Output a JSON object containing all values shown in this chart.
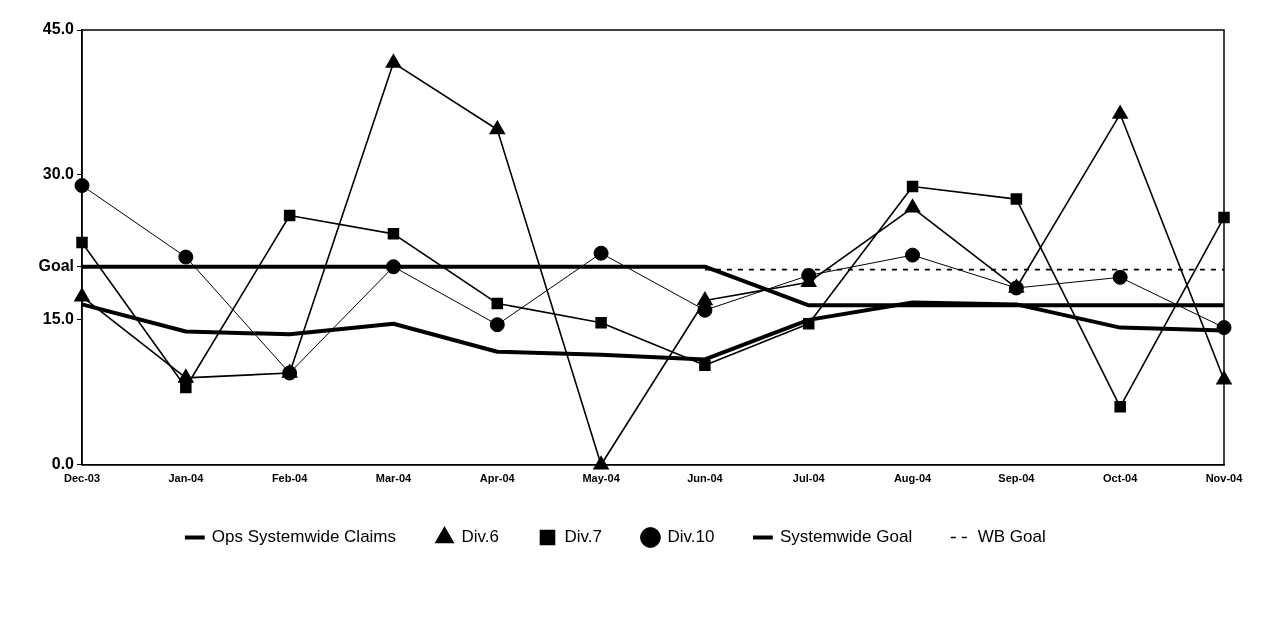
{
  "chart_data": {
    "type": "line",
    "categories": [
      "Dec-03",
      "Jan-04",
      "Feb-04",
      "Mar-04",
      "Apr-04",
      "May-04",
      "Jun-04",
      "Jul-04",
      "Aug-04",
      "Sep-04",
      "Oct-04",
      "Nov-04"
    ],
    "series": [
      {
        "name": "Ops Systemwide Claims",
        "color": "#000000",
        "marker": "none",
        "values": [
          16.6,
          13.8,
          13.5,
          14.6,
          11.7,
          11.4,
          10.9,
          15.0,
          16.8,
          16.6,
          14.2,
          13.9
        ]
      },
      {
        "name": "Div.6",
        "color": "#000000",
        "marker": "triangle",
        "values": [
          17.4,
          9.0,
          9.5,
          41.6,
          34.7,
          0.0,
          17.0,
          18.9,
          26.6,
          18.3,
          36.3,
          8.8
        ]
      },
      {
        "name": "Div.7",
        "color": "#000000",
        "marker": "square",
        "values": [
          23.0,
          8.0,
          25.8,
          23.9,
          16.7,
          14.7,
          10.3,
          14.6,
          28.8,
          27.5,
          6.0,
          25.6
        ]
      },
      {
        "name": "Div.10",
        "color": "#000000",
        "marker": "circle",
        "values": [
          28.9,
          21.5,
          9.5,
          20.5,
          14.5,
          21.9,
          16.0,
          19.6,
          21.7,
          18.3,
          19.4,
          14.2
        ]
      },
      {
        "name": "Systemwide Goal",
        "color": "#000000",
        "marker": "none",
        "values": [
          20.5,
          20.5,
          20.5,
          20.5,
          20.5,
          20.5,
          20.5,
          16.5,
          16.5,
          16.5,
          16.5,
          16.5
        ]
      },
      {
        "name": "WB Goal",
        "color": "#000000",
        "marker": "none",
        "line_style": "dashed",
        "values": [
          null,
          null,
          null,
          null,
          null,
          null,
          20.2,
          20.2,
          20.2,
          20.2,
          20.2,
          20.2
        ]
      }
    ],
    "ylim": [
      0,
      45
    ],
    "yticks": [
      {
        "value": 0,
        "label": "0.0"
      },
      {
        "value": 15,
        "label": "15.0"
      },
      {
        "value": 20.5,
        "label": "Goal"
      },
      {
        "value": 30,
        "label": "30.0"
      },
      {
        "value": 45,
        "label": "45.0"
      }
    ],
    "grid": false,
    "legend": "bottom"
  }
}
